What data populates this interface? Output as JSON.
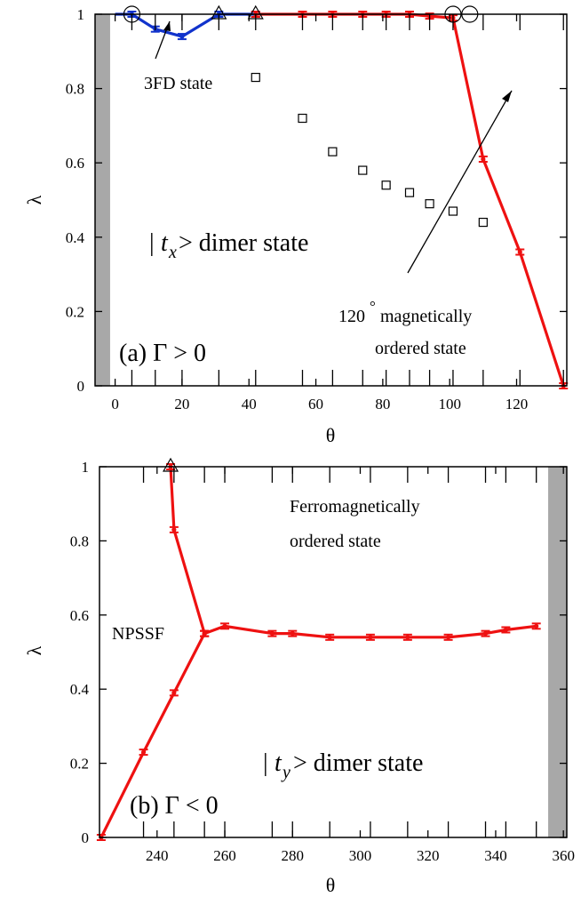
{
  "colors": {
    "red": "#ee1111",
    "blue": "#1133cc",
    "gray": "#a8a8a8",
    "black": "#000000"
  },
  "chart_data": [
    {
      "panel": "a",
      "type": "line",
      "xlabel": "θ",
      "ylabel": "λ",
      "xlim": [
        -6,
        135
      ],
      "ylim": [
        0,
        1
      ],
      "xticks": [
        0,
        20,
        40,
        60,
        80,
        100,
        120
      ],
      "xtick_labels": [
        "0",
        "20",
        "40",
        "60",
        "80",
        "100",
        "120"
      ],
      "yticks": [
        0,
        0.2,
        0.4,
        0.6,
        0.8,
        1
      ],
      "ytick_labels": [
        "0",
        "0.2",
        "0.4",
        "0.6",
        "0.8",
        "1"
      ],
      "minor_xticks": [
        5,
        12,
        20,
        31,
        42,
        56,
        65,
        74,
        81,
        88,
        94,
        101,
        110,
        121,
        134
      ],
      "grid": false,
      "gray_band": [
        -6,
        -1.5
      ],
      "series": [
        {
          "color": "blue",
          "x": [
            0,
            5,
            12,
            20,
            31,
            42
          ],
          "y": [
            1.0,
            1.0,
            0.96,
            0.94,
            1.0,
            1.0
          ]
        },
        {
          "color": "red",
          "x": [
            42,
            56,
            65,
            74,
            81,
            88,
            94,
            101,
            110,
            121,
            134
          ],
          "y": [
            1.0,
            1.0,
            1.0,
            1.0,
            1.0,
            1.0,
            0.995,
            0.99,
            0.61,
            0.36,
            0.0
          ]
        }
      ],
      "squares": {
        "x": [
          42,
          56,
          65,
          74,
          81,
          88,
          94,
          101,
          110
        ],
        "y": [
          0.83,
          0.72,
          0.63,
          0.58,
          0.54,
          0.52,
          0.49,
          0.47,
          0.44
        ]
      },
      "circles": {
        "x": [
          5,
          101,
          106
        ],
        "y": [
          1,
          1,
          1
        ]
      },
      "triangles": {
        "x": [
          31,
          42
        ],
        "y": [
          1,
          1
        ]
      },
      "labels": {
        "state_3fd": "3FD state",
        "dimer_left": "|",
        "dimer_t": "t",
        "dimer_sub": "x",
        "dimer_rest": " > dimer state",
        "ordered_line1": "120",
        "ordered_deg": "°",
        "ordered_line1b": " magnetically",
        "ordered_line2": "ordered state",
        "panel_label": "(a) Γ > 0"
      }
    },
    {
      "panel": "b",
      "type": "line",
      "xlabel": "θ",
      "ylabel": "λ",
      "xlim": [
        223,
        361
      ],
      "ylim": [
        0,
        1
      ],
      "xticks": [
        240,
        260,
        280,
        300,
        320,
        340,
        360
      ],
      "xtick_labels": [
        "240",
        "260",
        "280",
        "300",
        "320",
        "340",
        "360"
      ],
      "yticks": [
        0,
        0.2,
        0.4,
        0.6,
        0.8,
        1
      ],
      "ytick_labels": [
        "0",
        "0.2",
        "0.4",
        "0.6",
        "0.8",
        "1"
      ],
      "minor_xticks": [
        236,
        245,
        254,
        260,
        274,
        280,
        291,
        303,
        314,
        326,
        337,
        343,
        352
      ],
      "grid": false,
      "gray_band": [
        355.5,
        361
      ],
      "series": [
        {
          "color": "red",
          "x": [
            223.5,
            236,
            245,
            254
          ],
          "y": [
            0.0,
            0.23,
            0.39,
            0.55
          ]
        },
        {
          "color": "red",
          "x": [
            244,
            245,
            254
          ],
          "y": [
            1.0,
            0.83,
            0.55
          ]
        },
        {
          "color": "red",
          "x": [
            254,
            260,
            274,
            280,
            291,
            303,
            314,
            326,
            337,
            343,
            352
          ],
          "y": [
            0.55,
            0.57,
            0.55,
            0.55,
            0.54,
            0.54,
            0.54,
            0.54,
            0.55,
            0.56,
            0.57
          ]
        }
      ],
      "triangles": {
        "x": [
          244
        ],
        "y": [
          1
        ]
      },
      "labels": {
        "ferro_line1": "Ferromagnetically",
        "ferro_line2": "ordered state",
        "npssf": "NPSSF",
        "dimer_left": "|",
        "dimer_t": "t",
        "dimer_sub": "y",
        "dimer_rest": " > dimer state",
        "panel_label": "(b) Γ < 0"
      }
    }
  ]
}
